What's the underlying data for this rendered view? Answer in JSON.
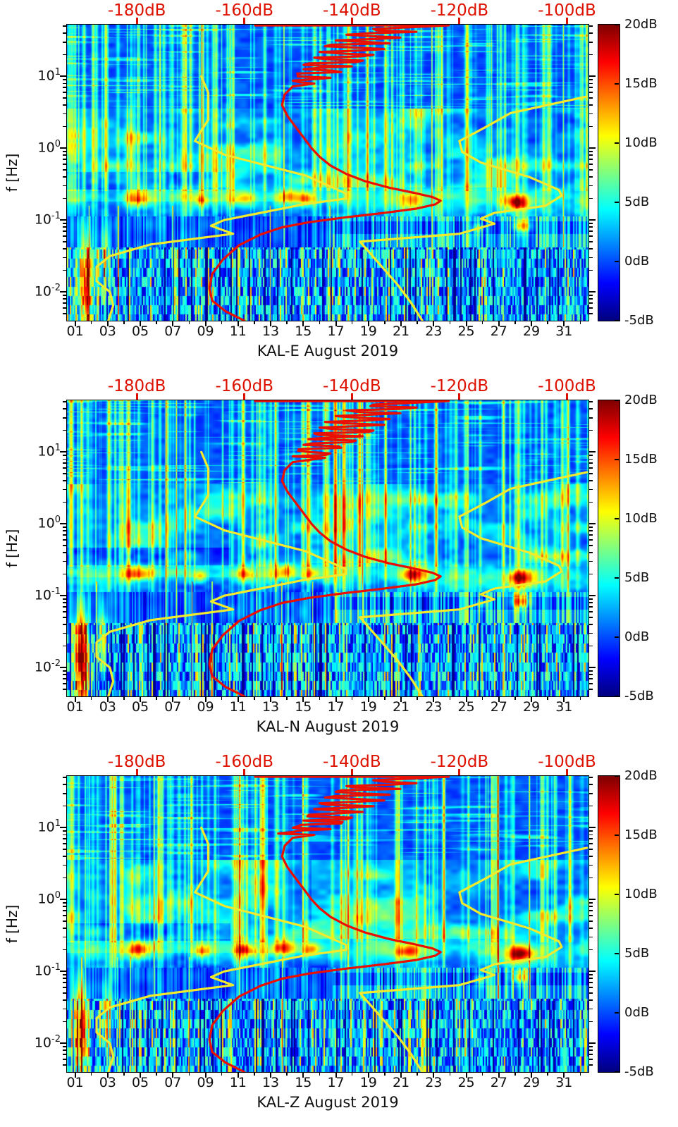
{
  "figure": {
    "y_axis_label": "f [Hz]",
    "top_axis_labels": [
      "-180dB",
      "-160dB",
      "-140dB",
      "-120dB",
      "-100dB"
    ],
    "x_tick_labels": [
      "01",
      "03",
      "05",
      "07",
      "09",
      "11",
      "13",
      "15",
      "17",
      "19",
      "21",
      "23",
      "25",
      "27",
      "29",
      "31"
    ],
    "y_tick_exponents": [
      "1",
      "0",
      "-1",
      "-2"
    ],
    "colorbar_tick_labels": [
      "20dB",
      "15dB",
      "10dB",
      "5dB",
      "0dB",
      "-5dB"
    ],
    "colors": {
      "top_axis_text": "#dd1100",
      "red_curve": "#ea0f00",
      "yellow_curve": "#f2ea2c",
      "axis_text": "#111111",
      "colormap_low": "#00007f",
      "colormap_high": "#7f0000"
    }
  },
  "panels": [
    {
      "station": "KAL-E",
      "title": "KAL-E August 2019",
      "seed": 11
    },
    {
      "station": "KAL-N",
      "title": "KAL-N August 2019",
      "seed": 23
    },
    {
      "station": "KAL-Z",
      "title": "KAL-Z August 2019",
      "seed": 37
    }
  ],
  "chart_data": {
    "type": "heatmap",
    "subtype": "seismic-spectrogram-with-noise-model-curves",
    "title_per_panel": [
      "KAL-E August 2019",
      "KAL-N August 2019",
      "KAL-Z August 2019"
    ],
    "x_axis": {
      "implicit_label": "day of month, August 2019",
      "tick_days": [
        1,
        3,
        5,
        7,
        9,
        11,
        13,
        15,
        17,
        19,
        21,
        23,
        25,
        27,
        29,
        31
      ],
      "range_days": [
        0.5,
        32.5
      ]
    },
    "y_axis": {
      "label": "f [Hz]",
      "scale": "log10",
      "tick_values_hz": [
        10,
        1,
        0.1,
        0.01
      ],
      "range_log10_hz": [
        -2.4,
        1.72
      ]
    },
    "top_axis": {
      "unit": "dB",
      "ticks": [
        -180,
        -160,
        -140,
        -120,
        -100
      ],
      "range_db": [
        -193,
        -96
      ]
    },
    "colorbar": {
      "unit": "dB",
      "ticks": [
        20,
        15,
        10,
        5,
        0,
        -5
      ],
      "range": [
        -5,
        20
      ],
      "colormap": "jet"
    },
    "curves": {
      "red_psd_mode": {
        "color": "#ea0f00",
        "points_log10hz_db": [
          [
            1.71,
            -158
          ],
          [
            1.71,
            -122
          ],
          [
            1.66,
            -136
          ],
          [
            1.62,
            -128
          ],
          [
            1.58,
            -141
          ],
          [
            1.54,
            -131
          ],
          [
            1.5,
            -143
          ],
          [
            1.46,
            -133
          ],
          [
            1.42,
            -145
          ],
          [
            1.38,
            -134
          ],
          [
            1.34,
            -146
          ],
          [
            1.3,
            -136
          ],
          [
            1.26,
            -147
          ],
          [
            1.22,
            -138
          ],
          [
            1.18,
            -148
          ],
          [
            1.14,
            -140
          ],
          [
            1.1,
            -149
          ],
          [
            1.06,
            -142
          ],
          [
            1.02,
            -150
          ],
          [
            0.98,
            -144
          ],
          [
            0.94,
            -151
          ],
          [
            0.9,
            -147
          ],
          [
            0.86,
            -151
          ],
          [
            0.75,
            -152.5
          ],
          [
            0.6,
            -153
          ],
          [
            0.45,
            -152
          ],
          [
            0.3,
            -150.5
          ],
          [
            0.15,
            -149
          ],
          [
            0,
            -147.5
          ],
          [
            -0.12,
            -146
          ],
          [
            -0.24,
            -144
          ],
          [
            -0.36,
            -141
          ],
          [
            -0.46,
            -137.5
          ],
          [
            -0.55,
            -133
          ],
          [
            -0.62,
            -128.5
          ],
          [
            -0.68,
            -125
          ],
          [
            -0.73,
            -123.5
          ],
          [
            -0.78,
            -124.5
          ],
          [
            -0.84,
            -128
          ],
          [
            -0.9,
            -134
          ],
          [
            -0.96,
            -141
          ],
          [
            -1.03,
            -148
          ],
          [
            -1.1,
            -153
          ],
          [
            -1.2,
            -157
          ],
          [
            -1.35,
            -161
          ],
          [
            -1.55,
            -164
          ],
          [
            -1.75,
            -166
          ],
          [
            -1.95,
            -166.5
          ],
          [
            -2.12,
            -166
          ],
          [
            -2.27,
            -163.5
          ],
          [
            -2.4,
            -160
          ]
        ]
      },
      "yellow_low_noise_model": {
        "color": "#f2ea2c",
        "points_log10hz_db": [
          [
            1.0,
            -168
          ],
          [
            0.77,
            -166.7
          ],
          [
            0.4,
            -166.7
          ],
          [
            0.1,
            -169.2
          ],
          [
            -0.09,
            -163.7
          ],
          [
            -0.38,
            -148.6
          ],
          [
            -0.63,
            -141.1
          ],
          [
            -0.7,
            -141.1
          ],
          [
            -0.78,
            -149
          ],
          [
            -1.0,
            -163.8
          ],
          [
            -1.08,
            -166.2
          ],
          [
            -1.19,
            -162.1
          ],
          [
            -1.34,
            -177.5
          ],
          [
            -1.5,
            -185
          ],
          [
            -1.65,
            -187.5
          ],
          [
            -1.85,
            -187.5
          ],
          [
            -2.0,
            -185
          ],
          [
            -2.19,
            -184.4
          ],
          [
            -2.4,
            -185.3
          ]
        ]
      },
      "yellow_high_noise_model": {
        "color": "#f2ea2c",
        "points_log10hz_db": [
          [
            0.72,
            -96.3
          ],
          [
            0.49,
            -110.5
          ],
          [
            0.3,
            -115
          ],
          [
            0.1,
            -120
          ],
          [
            -0.05,
            -119.5
          ],
          [
            -0.2,
            -116
          ],
          [
            -0.4,
            -107
          ],
          [
            -0.58,
            -101.5
          ],
          [
            -0.66,
            -101
          ],
          [
            -0.8,
            -104
          ],
          [
            -0.9,
            -113.5
          ],
          [
            -0.98,
            -116
          ],
          [
            -1.05,
            -113.5
          ],
          [
            -1.19,
            -120
          ],
          [
            -1.3,
            -138.5
          ],
          [
            -1.6,
            -135
          ],
          [
            -1.9,
            -131.5
          ],
          [
            -2.15,
            -129
          ],
          [
            -2.4,
            -126.9
          ]
        ]
      }
    },
    "bright_regions_estimate": [
      {
        "day": 4.8,
        "logf": -0.7,
        "amp": 10,
        "sd": 0.8,
        "sf": 0.11
      },
      {
        "day": 8.6,
        "logf": -0.73,
        "amp": 7,
        "sd": 0.45,
        "sf": 0.09
      },
      {
        "day": 11.5,
        "logf": -0.7,
        "amp": 10,
        "sd": 0.7,
        "sf": 0.1
      },
      {
        "day": 13.9,
        "logf": -0.67,
        "amp": 11,
        "sd": 0.8,
        "sf": 0.11
      },
      {
        "day": 15.3,
        "logf": -0.7,
        "amp": 8,
        "sd": 0.5,
        "sf": 0.09
      },
      {
        "day": 21.6,
        "logf": -0.72,
        "amp": 10,
        "sd": 0.8,
        "sf": 0.11
      },
      {
        "day": 28.2,
        "logf": -0.76,
        "amp": 16,
        "sd": 0.8,
        "sf": 0.12
      },
      {
        "day": 28.4,
        "logf": -1.08,
        "amp": 12,
        "sd": 0.55,
        "sf": 0.1
      },
      {
        "day": 25.8,
        "logf": -1.12,
        "amp": 7,
        "sd": 0.4,
        "sf": 0.08
      },
      {
        "day": 1.5,
        "logf": -1.85,
        "amp": 17,
        "sd": 0.45,
        "sf": 0.65
      },
      {
        "day": 2.8,
        "logf": -1.55,
        "amp": 9,
        "sd": 0.3,
        "sf": 0.5
      },
      {
        "day": 4.3,
        "logf": 0.1,
        "amp": 5,
        "sd": 0.35,
        "sf": 0.55
      }
    ]
  }
}
